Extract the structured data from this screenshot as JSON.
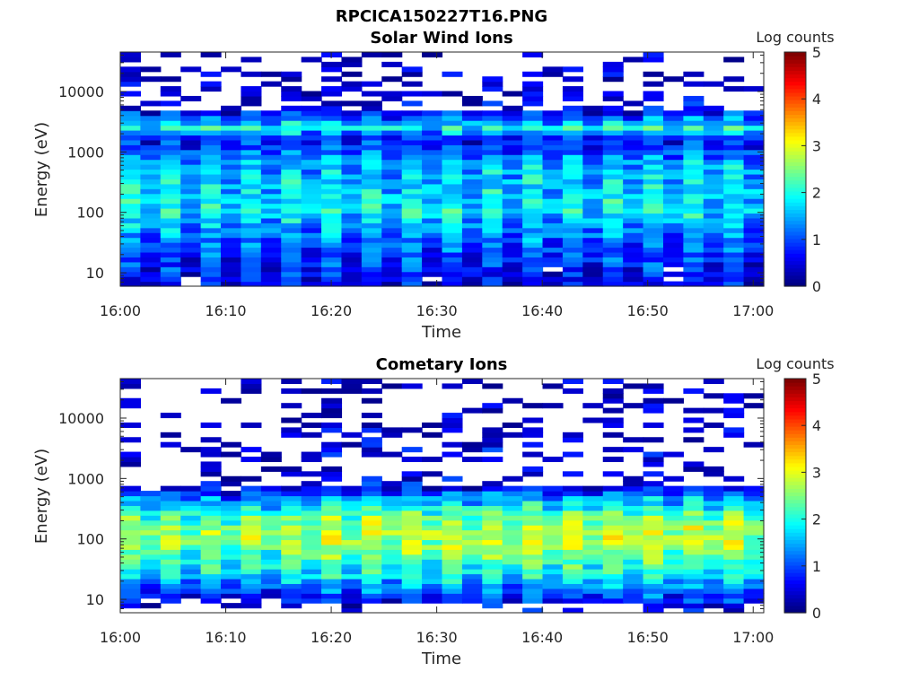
{
  "figure": {
    "title": "RPCICA150227T16.PNG"
  },
  "colors": {
    "colormap": "jet",
    "axis": "#262626",
    "background": "#ffffff",
    "no_data": "#ffffff"
  },
  "chart_data": [
    {
      "type": "heatmap",
      "title": "Solar Wind Ions",
      "xlabel": "Time",
      "ylabel": "Energy (eV)",
      "y_scale": "log",
      "ylim": [
        6,
        45000
      ],
      "xlim": [
        "16:00",
        "17:01"
      ],
      "x_ticks": [
        "16:00",
        "16:10",
        "16:20",
        "16:30",
        "16:40",
        "16:50",
        "17:00"
      ],
      "y_ticks": [
        "10",
        "100",
        "1000",
        "10000"
      ],
      "colorbar": {
        "label": "Log counts",
        "range": [
          0,
          5
        ],
        "ticks": [
          "0",
          "1",
          "2",
          "3",
          "4",
          "5"
        ]
      },
      "grid": false,
      "profile_by_energy_log10": [
        {
          "log_energy": 0.9,
          "log_counts": 0.5
        },
        {
          "log_energy": 1.3,
          "log_counts": 0.9
        },
        {
          "log_energy": 1.7,
          "log_counts": 1.3
        },
        {
          "log_energy": 2.05,
          "log_counts": 1.8
        },
        {
          "log_energy": 2.4,
          "log_counts": 1.6
        },
        {
          "log_energy": 2.8,
          "log_counts": 1.5
        },
        {
          "log_energy": 3.2,
          "log_counts": 0.6
        },
        {
          "log_energy": 3.4,
          "log_counts": 1.9
        },
        {
          "log_energy": 3.7,
          "log_counts": 0.4
        },
        {
          "log_energy": 4.2,
          "log_counts": 0.15
        },
        {
          "log_energy": 4.6,
          "log_counts": 0.1
        }
      ]
    },
    {
      "type": "heatmap",
      "title": "Cometary Ions",
      "xlabel": "Time",
      "ylabel": "Energy (eV)",
      "y_scale": "log",
      "ylim": [
        6,
        45000
      ],
      "xlim": [
        "16:00",
        "17:01"
      ],
      "x_ticks": [
        "16:00",
        "16:10",
        "16:20",
        "16:30",
        "16:40",
        "16:50",
        "17:00"
      ],
      "y_ticks": [
        "10",
        "100",
        "1000",
        "10000"
      ],
      "colorbar": {
        "label": "Log counts",
        "range": [
          0,
          5
        ],
        "ticks": [
          "0",
          "1",
          "2",
          "3",
          "4",
          "5"
        ]
      },
      "grid": false,
      "profile_by_energy_log10": [
        {
          "log_energy": 0.9,
          "log_counts": 0.4
        },
        {
          "log_energy": 1.2,
          "log_counts": 1.3
        },
        {
          "log_energy": 1.5,
          "log_counts": 2.0
        },
        {
          "log_energy": 1.9,
          "log_counts": 2.6
        },
        {
          "log_energy": 2.1,
          "log_counts": 2.8
        },
        {
          "log_energy": 2.4,
          "log_counts": 2.3
        },
        {
          "log_energy": 2.7,
          "log_counts": 1.3
        },
        {
          "log_energy": 2.85,
          "log_counts": 0.5
        },
        {
          "log_energy": 3.2,
          "log_counts": 0.1
        },
        {
          "log_energy": 3.45,
          "log_counts": 0.4
        },
        {
          "log_energy": 3.7,
          "log_counts": 0.2
        },
        {
          "log_energy": 4.1,
          "log_counts": 0.1
        }
      ]
    }
  ]
}
